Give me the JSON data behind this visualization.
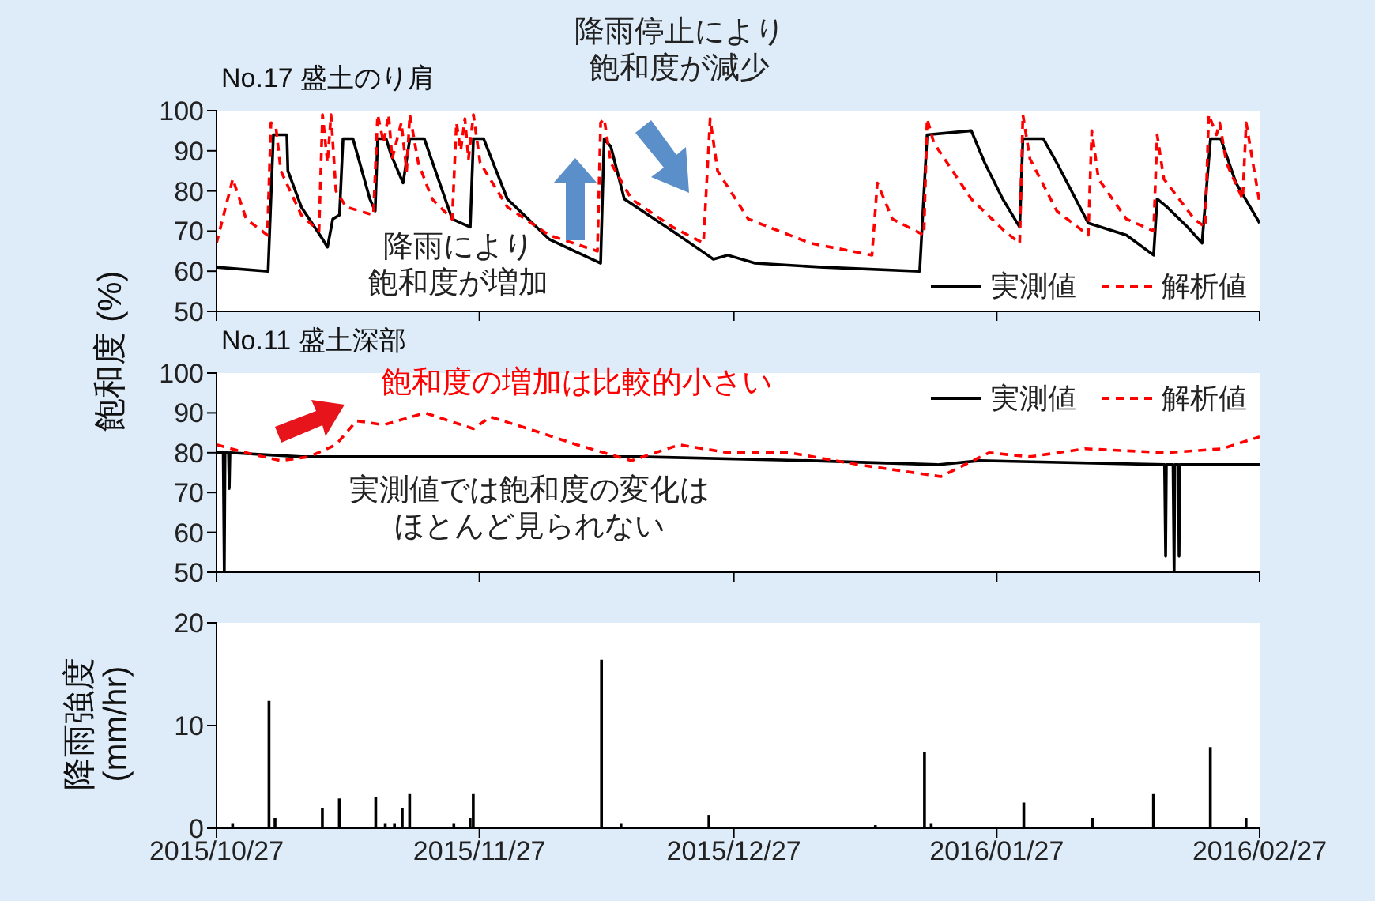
{
  "chart_data": [
    {
      "type": "line",
      "title": "No.17 盛土のり肩",
      "ylabel": "飽和度 (%)",
      "xlim": [
        "2015-10-27",
        "2016-02-27"
      ],
      "xticks": [
        {
          "value": "2015-10-27",
          "label": null
        },
        {
          "value": "2015-11-27",
          "label": null
        },
        {
          "value": "2015-12-27",
          "label": null
        },
        {
          "value": "2016-01-27",
          "label": null
        },
        {
          "value": "2016-02-27",
          "label": null
        }
      ],
      "ylim": [
        50,
        100
      ],
      "yticks": [
        50,
        60,
        70,
        80,
        90,
        100
      ],
      "tick_labels": "y",
      "legend": "bottom right",
      "annotations": [
        "降雨により飽和度が増加",
        "降雨停止により飽和度が減少"
      ],
      "series": [
        {
          "name": "実測値",
          "color": "#000000",
          "line_style": "solid",
          "x": [
            "2015-10-27",
            "2015-11-02T02:00",
            "2015-11-02T17:00",
            "2015-11-04T07:00",
            "2015-11-04T10:00",
            "2015-11-06",
            "2015-11-08T12:00",
            "2015-11-09T02:00",
            "2015-11-09T17:00",
            "2015-11-10T12:00",
            "2015-11-10T22:00",
            "2015-11-12T02:00",
            "2015-11-14T02:00",
            "2015-11-14T17:00",
            "2015-11-15",
            "2015-11-16",
            "2015-11-16T14:00",
            "2015-11-18",
            "2015-11-18T19:00",
            "2015-11-20T12:00",
            "2015-11-23T19:00",
            "2015-11-25T22:00",
            "2015-11-26T07:00",
            "2015-11-27T12:00",
            "2015-11-30T07:00",
            "2015-12-05T05:00",
            "2015-12-11T07:00",
            "2015-12-11T17:00",
            "2015-12-12T12:00",
            "2015-12-14T02:00",
            "2015-12-19T19:00",
            "2015-12-23T22:00",
            "2015-12-24T14:00",
            "2015-12-26T07:00",
            "2015-12-29T12:00",
            "2016-01-06T14:00",
            "2016-01-17T22:00",
            "2016-01-18T19:00",
            "2016-01-24",
            "2016-01-25T14:00",
            "2016-01-27T17:00",
            "2016-01-29T17:00",
            "2016-01-30T02:00",
            "2016-02-01T12:00",
            "2016-02-03T02:00",
            "2016-02-06T19:00",
            "2016-02-11T07:00",
            "2016-02-14T12:00",
            "2016-02-14T22:00",
            "2016-02-16T02:00",
            "2016-02-18T12:00",
            "2016-02-20T05:00",
            "2016-02-21T05:00",
            "2016-02-22T10:00",
            "2016-02-24T05:00",
            "2016-02-27"
          ],
          "values": [
            61,
            60,
            94,
            94,
            85,
            76,
            68,
            66,
            73,
            74,
            93,
            93,
            78,
            75,
            93,
            93,
            89,
            82,
            93,
            93,
            73,
            71,
            93,
            93,
            78,
            68,
            62,
            93,
            91,
            78,
            70,
            64,
            63,
            64,
            62,
            61,
            60,
            94,
            95,
            87,
            78,
            71,
            93,
            93,
            87,
            72,
            69,
            64,
            78,
            76,
            71,
            67,
            93,
            93,
            82,
            72
          ]
        },
        {
          "name": "解析値",
          "color": "#ff0000",
          "line_style": "dashed",
          "x": [
            "2015-10-27",
            "2015-10-28T22:00",
            "2015-10-30T12:00",
            "2015-11-02",
            "2015-11-02T10:00",
            "2015-11-03",
            "2015-11-03T14:00",
            "2015-11-06",
            "2015-11-08T02:00",
            "2015-11-08T12:00",
            "2015-11-09T02:00",
            "2015-11-09T12:00",
            "2015-11-10T02:00",
            "2015-11-11T07:00",
            "2015-11-14T12:00",
            "2015-11-15",
            "2015-11-15T17:00",
            "2015-11-16T07:00",
            "2015-11-16T17:00",
            "2015-11-17T19:00",
            "2015-11-18T10:00",
            "2015-11-18T19:00",
            "2015-11-19T19:00",
            "2015-11-21T10:00",
            "2015-11-23T19:00",
            "2015-11-24T07:00",
            "2015-11-24T19:00",
            "2015-11-25T07:00",
            "2015-11-25T17:00",
            "2015-11-26T07:00",
            "2015-11-27T02:00",
            "2015-11-30T07:00",
            "2015-12-05T05:00",
            "2015-12-10T22:00",
            "2015-12-11T07:00",
            "2015-12-11T17:00",
            "2015-12-12T12:00",
            "2015-12-14T22:00",
            "2015-12-19T19:00",
            "2015-12-23T10:00",
            "2015-12-24T05:00",
            "2015-12-25T02:00",
            "2015-12-28T17:00",
            "2016-01-05",
            "2016-01-12T07:00",
            "2016-01-12T22:00",
            "2016-01-14T17:00",
            "2016-01-18T10:00",
            "2016-01-18T19:00",
            "2016-01-19T14:00",
            "2016-01-24",
            "2016-01-27T22:00",
            "2016-01-29T17:00",
            "2016-01-30T02:00",
            "2016-01-30T22:00",
            "2016-02-03T02:00",
            "2016-02-06T19:00",
            "2016-02-07T05:00",
            "2016-02-08",
            "2016-02-11T07:00",
            "2016-02-14T12:00",
            "2016-02-14T22:00",
            "2016-02-15T17:00",
            "2016-02-19T07:00",
            "2016-02-20T14:00",
            "2016-02-21",
            "2016-02-21T22:00",
            "2016-02-22T07:00",
            "2016-02-23T02:00",
            "2016-02-25",
            "2016-02-25T10:00",
            "2016-02-26T05:00",
            "2016-02-27"
          ],
          "values": [
            67,
            83,
            73,
            69,
            97,
            96,
            85,
            74,
            70,
            99,
            87,
            99,
            80,
            76,
            74,
            99,
            92,
            99,
            88,
            97,
            85,
            99,
            87,
            78,
            73,
            97,
            90,
            98,
            88,
            99,
            87,
            76,
            69,
            65,
            97,
            98,
            87,
            78,
            71,
            67,
            98,
            85,
            73,
            67,
            64,
            82,
            73,
            69,
            98,
            92,
            78,
            70,
            67,
            99,
            88,
            75,
            69,
            95,
            83,
            73,
            70,
            94,
            83,
            73,
            71,
            99,
            94,
            97,
            87,
            78,
            97,
            87,
            77
          ]
        }
      ]
    },
    {
      "type": "line",
      "title": "No.11 盛土深部",
      "xlim": [
        "2015-10-27",
        "2016-02-27"
      ],
      "xticks": [
        {
          "value": "2015-10-27",
          "label": null
        },
        {
          "value": "2015-11-27",
          "label": null
        },
        {
          "value": "2015-12-27",
          "label": null
        },
        {
          "value": "2016-01-27",
          "label": null
        },
        {
          "value": "2016-02-27",
          "label": null
        }
      ],
      "ylim": [
        50,
        100
      ],
      "yticks": [
        50,
        60,
        70,
        80,
        90,
        100
      ],
      "tick_labels": "y",
      "legend": "top right",
      "annotations": [
        "飽和度の増加は比較的小さい",
        "実測値では飽和度の変化はほとんど見られない"
      ],
      "series": [
        {
          "name": "実測値",
          "color": "#000000",
          "line_style": "solid",
          "x": [
            "2015-10-27",
            "2015-10-27T19:00",
            "2015-10-27T22:00",
            "2015-10-28",
            "2015-10-28T10:00",
            "2015-10-28T12:00",
            "2015-10-28T14:00",
            "2015-11-06",
            "2015-11-26",
            "2015-12-16",
            "2016-01-05",
            "2016-01-20",
            "2016-01-25",
            "2016-02-15T19:00",
            "2016-02-15T22:00",
            "2016-02-16",
            "2016-02-16T19:00",
            "2016-02-16T22:00",
            "2016-02-17",
            "2016-02-17T10:00",
            "2016-02-17T12:00",
            "2016-02-17T14:00",
            "2016-02-27"
          ],
          "values": [
            80,
            80,
            50,
            80,
            80,
            71,
            80,
            79,
            79,
            79,
            78,
            77,
            78,
            77,
            54,
            77,
            77,
            50,
            77,
            77,
            54,
            77,
            77
          ]
        },
        {
          "name": "解析値",
          "color": "#ff0000",
          "line_style": "dashed",
          "x": [
            "2015-10-27",
            "2015-10-30T12:00",
            "2015-11-03T14:00",
            "2015-11-06T22:00",
            "2015-11-10T02:00",
            "2015-11-12T12:00",
            "2015-11-15T17:00",
            "2015-11-20T14:00",
            "2015-11-26T07:00",
            "2015-11-28T07:00",
            "2015-12-02T19:00",
            "2015-12-08T12:00",
            "2015-12-14T22:00",
            "2015-12-20T14:00",
            "2015-12-26T07:00",
            "2016-01-02T14:00",
            "2016-01-10T17:00",
            "2016-01-20T10:00",
            "2016-01-26T02:00",
            "2016-01-30T22:00",
            "2016-02-06T10:00",
            "2016-02-16T02:00",
            "2016-02-22T14:00",
            "2016-02-27"
          ],
          "values": [
            82,
            80,
            78,
            79,
            82,
            88,
            87,
            90,
            86,
            89,
            86,
            82,
            78,
            82,
            80,
            80,
            77,
            74,
            80,
            79,
            81,
            80,
            81,
            84
          ]
        }
      ]
    },
    {
      "type": "bar",
      "ylabel": "降雨強度\n(mm/hr)",
      "xlim": [
        "2015-10-27",
        "2016-02-27"
      ],
      "xticks": [
        {
          "value": "2015-10-27",
          "label": "2015/10/27"
        },
        {
          "value": "2015-11-27",
          "label": "2015/11/27"
        },
        {
          "value": "2015-12-27",
          "label": "2015/12/27"
        },
        {
          "value": "2016-01-27",
          "label": "2016/01/27"
        },
        {
          "value": "2016-02-27",
          "label": "2016/02/27"
        }
      ],
      "ylim": [
        0,
        20
      ],
      "yticks": [
        0,
        10,
        20
      ],
      "color": "#000000",
      "x": [
        "2015-10-28T22:00",
        "2015-11-02T05:00",
        "2015-11-02T22:00",
        "2015-11-08T12:00",
        "2015-11-10T12:00",
        "2015-11-14T19:00",
        "2015-11-15T22:00",
        "2015-11-17",
        "2015-11-17T22:00",
        "2015-11-18T19:00",
        "2015-11-24",
        "2015-11-25T22:00",
        "2015-11-26T07:00",
        "2015-12-11T10:00",
        "2015-12-13T17:00",
        "2015-12-24T02:00",
        "2016-01-12T17:00",
        "2016-01-18T12:00",
        "2016-01-19T07:00",
        "2016-01-30T05:00",
        "2016-02-07T07:00",
        "2016-02-14T12:00",
        "2016-02-21T05:00",
        "2016-02-25T10:00"
      ],
      "values": [
        0.5,
        12.4,
        1,
        2,
        2.9,
        3,
        0.5,
        0.5,
        2,
        3.4,
        0.5,
        1,
        3.4,
        16.4,
        0.5,
        1.3,
        0.3,
        7.4,
        0.5,
        2.5,
        1,
        3.4,
        7.9,
        1
      ]
    }
  ]
}
